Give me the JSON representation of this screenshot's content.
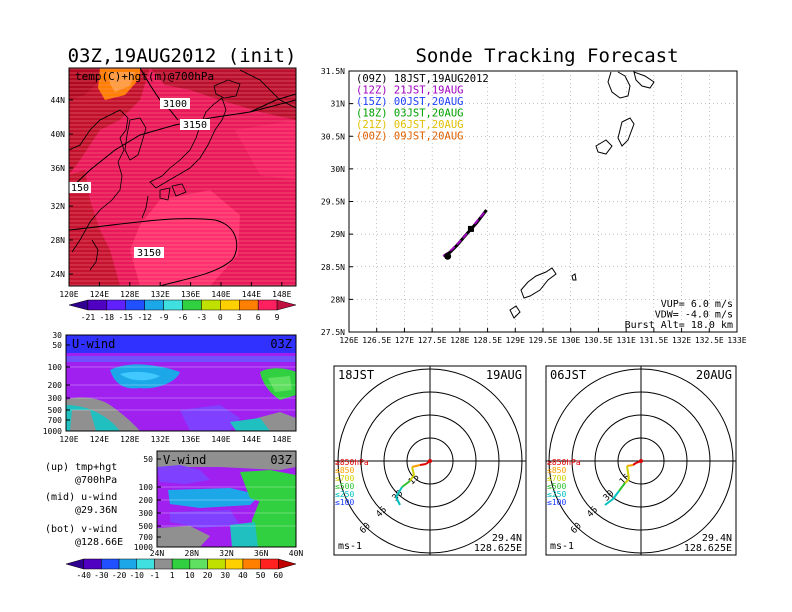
{
  "titles": {
    "left": "03Z,19AUG2012 (init)",
    "right": "Sonde Tracking Forecast"
  },
  "map_panel": {
    "label": "temp(C)+hgt(m)@700hPa",
    "contours": [
      "3100",
      "3150",
      "150",
      "3150"
    ],
    "lat_ticks": [
      "44N",
      "40N",
      "36N",
      "32N",
      "28N",
      "24N"
    ],
    "lon_ticks": [
      "120E",
      "124E",
      "128E",
      "132E",
      "136E",
      "140E",
      "144E",
      "148E"
    ],
    "colorbar": [
      "-21",
      "-18",
      "-15",
      "-12",
      "-9",
      "-6",
      "-3",
      "0",
      "3",
      "6",
      "9"
    ]
  },
  "u_panel": {
    "label": "U-wind",
    "time": "03Z",
    "y_ticks": [
      "30",
      "50",
      "100",
      "200",
      "300",
      "500",
      "700",
      "1000"
    ],
    "x_ticks": [
      "120E",
      "124E",
      "128E",
      "132E",
      "136E",
      "140E",
      "144E",
      "148E"
    ]
  },
  "v_panel": {
    "label": "V-wind",
    "time": "03Z",
    "y_ticks": [
      "50",
      "100",
      "200",
      "300",
      "500",
      "700",
      "1000"
    ],
    "x_ticks": [
      "24N",
      "28N",
      "32N",
      "36N",
      "40N"
    ],
    "colorbar": [
      "-40",
      "-30",
      "-20",
      "-10",
      "-1",
      "1",
      "10",
      "20",
      "30",
      "40",
      "50",
      "60"
    ]
  },
  "legend_notes": [
    {
      "a": "(up) tmp+hgt",
      "b": "@700hPa"
    },
    {
      "a": "(mid) u-wind",
      "b": "@29.36N"
    },
    {
      "a": "(bot) v-wind",
      "b": "@128.66E"
    }
  ],
  "track_panel": {
    "legend": [
      {
        "text": "(09Z) 18JST,19AUG2012",
        "color": "#000000"
      },
      {
        "text": "(12Z) 21JST,19AUG",
        "color": "#a000c0"
      },
      {
        "text": "(15Z) 00JST,20AUG",
        "color": "#2040ff"
      },
      {
        "text": "(18Z) 03JST,20AUG",
        "color": "#00a000"
      },
      {
        "text": "(21Z) 06JST,20AUG",
        "color": "#e0c000"
      },
      {
        "text": "(00Z) 09JST,20AUG",
        "color": "#e06000"
      }
    ],
    "lat_ticks": [
      "31.5N",
      "31N",
      "30.5N",
      "30N",
      "29.5N",
      "29N",
      "28.5N",
      "28N",
      "27.5N"
    ],
    "lon_ticks": [
      "126E",
      "126.5E",
      "127E",
      "127.5E",
      "128E",
      "128.5E",
      "129E",
      "129.5E",
      "130E",
      "130.5E",
      "131E",
      "131.5E",
      "132E",
      "132.5E",
      "133E"
    ],
    "params": [
      "VUP= 6.0 m/s",
      "VDW= -4.0 m/s",
      "Burst Alt= 18.0 km"
    ]
  },
  "hodographs": [
    {
      "time": "18JST",
      "date": "19AUG",
      "levels": [
        "≥850hPa",
        "≤850",
        "≤700",
        "≤500",
        "≤250",
        "≤100"
      ],
      "rings": [
        "15",
        "30",
        "45",
        "60"
      ],
      "lat": "29.4N",
      "lon": "128.625E",
      "unit": "ms-1"
    },
    {
      "time": "06JST",
      "date": "20AUG",
      "levels": [
        "≥850hPa",
        "≤850",
        "≤700",
        "≤500",
        "≤250",
        "≤100"
      ],
      "rings": [
        "15",
        "30",
        "45",
        "60"
      ],
      "lat": "29.4N",
      "lon": "128.625E",
      "unit": "ms-1"
    }
  ],
  "chart_data": [
    {
      "type": "heatmap",
      "title": "03Z,19AUG2012 (init)",
      "subtitle": "temp(C)+hgt(m)@700hPa",
      "xlim": [
        120,
        150
      ],
      "ylim": [
        22,
        47
      ],
      "contour_labels": [
        3100,
        3150,
        150,
        3150
      ],
      "color_levels": [
        -21,
        -18,
        -15,
        -12,
        -9,
        -6,
        -3,
        0,
        3,
        6,
        9
      ]
    },
    {
      "type": "heatmap",
      "title": "U-wind",
      "x_range": [
        120,
        150
      ],
      "y_levels_hPa": [
        30,
        50,
        100,
        200,
        300,
        500,
        700,
        1000
      ]
    },
    {
      "type": "heatmap",
      "title": "V-wind",
      "x_range": [
        24,
        40
      ],
      "y_levels_hPa": [
        50,
        100,
        200,
        300,
        500,
        700,
        1000
      ],
      "color_levels": [
        -40,
        -30,
        -20,
        -10,
        -1,
        1,
        10,
        20,
        30,
        40,
        50,
        60
      ]
    },
    {
      "type": "line",
      "title": "Sonde Tracking Forecast",
      "xlim": [
        126,
        133
      ],
      "ylim": [
        27.5,
        31.5
      ],
      "series": [
        {
          "name": "(09Z) 18JST,19AUG2012",
          "x": [
            127.72,
            127.82,
            127.95,
            128.1,
            128.3,
            128.48
          ],
          "y": [
            28.67,
            28.72,
            28.83,
            28.98,
            29.17,
            29.37
          ]
        },
        {
          "name": "(12Z) 21JST,19AUG",
          "x": [
            127.7,
            127.85,
            128.05,
            128.25,
            128.47
          ],
          "y": [
            28.66,
            28.76,
            28.93,
            29.14,
            29.36
          ]
        }
      ],
      "markers": [
        {
          "x": 127.78,
          "y": 28.66
        },
        {
          "x": 128.2,
          "y": 29.08
        }
      ]
    },
    {
      "type": "line",
      "title": "18JST 19AUG",
      "rings": [
        15,
        30,
        45,
        60
      ],
      "unit": "ms-1"
    },
    {
      "type": "line",
      "title": "06JST 20AUG",
      "rings": [
        15,
        30,
        45,
        60
      ],
      "unit": "ms-1"
    }
  ]
}
